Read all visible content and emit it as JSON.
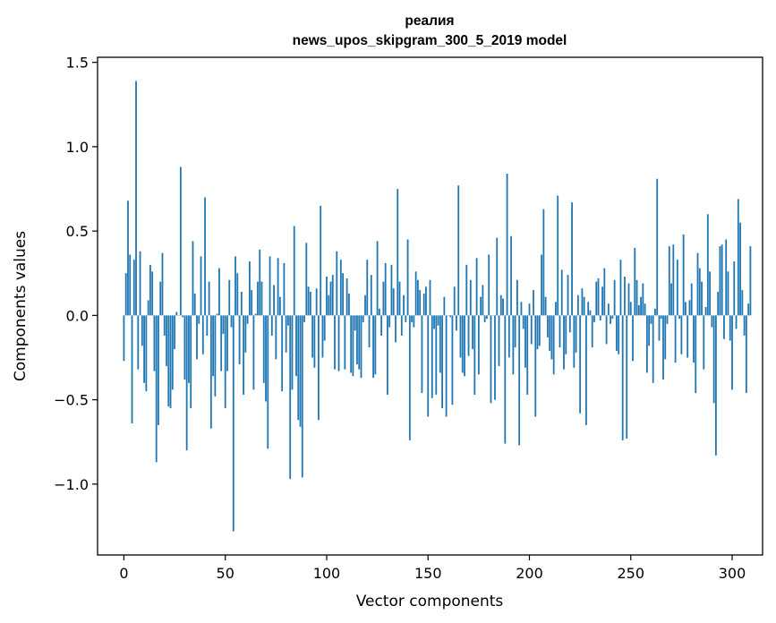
{
  "chart_data": {
    "type": "bar",
    "title": "реалия",
    "subtitle": "news_upos_skipgram_300_5_2019 model",
    "xlabel": "Vector components",
    "ylabel": "Components values",
    "xlim": [
      -13,
      315
    ],
    "ylim": [
      -1.42,
      1.53
    ],
    "xticks": [
      0,
      50,
      100,
      150,
      200,
      250,
      300
    ],
    "xtick_labels": [
      "0",
      "50",
      "100",
      "150",
      "200",
      "250",
      "300"
    ],
    "yticks": [
      -1.0,
      -0.5,
      0.0,
      0.5,
      1.0,
      1.5
    ],
    "ytick_labels": [
      "−1.0",
      "−0.5",
      "0.0",
      "0.5",
      "1.0",
      "1.5"
    ],
    "bar_color": "#1f77b4",
    "values": [
      -0.27,
      0.25,
      0.68,
      0.36,
      -0.64,
      0.33,
      1.39,
      -0.32,
      0.38,
      -0.18,
      -0.4,
      -0.45,
      0.09,
      0.3,
      0.26,
      -0.33,
      -0.87,
      -0.65,
      0.2,
      0.37,
      -0.12,
      -0.3,
      -0.54,
      -0.55,
      -0.44,
      -0.2,
      0.02,
      0.0,
      0.88,
      -0.01,
      -0.38,
      -0.8,
      -0.4,
      -0.55,
      0.44,
      0.13,
      -0.26,
      -0.05,
      0.35,
      -0.23,
      0.7,
      -0.12,
      0.2,
      -0.67,
      -0.36,
      -0.48,
      0.01,
      0.28,
      -0.33,
      -0.11,
      -0.55,
      -0.33,
      0.21,
      -0.07,
      -1.28,
      0.35,
      0.25,
      -0.29,
      0.14,
      -0.47,
      -0.22,
      -0.05,
      0.32,
      0.15,
      -0.44,
      0.01,
      0.2,
      0.39,
      0.2,
      -0.4,
      -0.51,
      -0.79,
      0.35,
      -0.12,
      0.18,
      -0.26,
      0.34,
      0.11,
      -0.45,
      0.31,
      -0.22,
      -0.06,
      -0.97,
      -0.44,
      0.53,
      -0.36,
      -0.62,
      -0.66,
      -0.96,
      -0.04,
      0.43,
      0.17,
      0.14,
      -0.25,
      -0.31,
      0.16,
      -0.62,
      0.65,
      -0.25,
      -0.15,
      0.23,
      0.12,
      0.2,
      0.24,
      -0.32,
      0.38,
      -0.33,
      0.33,
      0.25,
      -0.32,
      0.22,
      0.13,
      -0.34,
      -0.36,
      -0.09,
      -0.29,
      -0.32,
      -0.37,
      -0.04,
      0.12,
      0.33,
      -0.19,
      0.24,
      -0.37,
      -0.35,
      0.44,
      0.04,
      -0.12,
      0.2,
      0.31,
      -0.47,
      -0.07,
      0.3,
      0.16,
      -0.16,
      0.75,
      0.2,
      -0.12,
      0.12,
      -0.04,
      0.45,
      -0.74,
      -0.04,
      -0.07,
      0.26,
      0.21,
      0.15,
      -0.46,
      0.13,
      0.17,
      -0.6,
      0.21,
      -0.49,
      -0.08,
      -0.47,
      -0.06,
      -0.34,
      -0.55,
      0.11,
      -0.6,
      0.0,
      -0.01,
      -0.53,
      0.17,
      -0.09,
      0.77,
      -0.25,
      -0.34,
      -0.36,
      0.3,
      -0.24,
      0.21,
      -0.2,
      -0.47,
      0.34,
      -0.35,
      0.11,
      0.18,
      -0.04,
      -0.02,
      0.36,
      -0.52,
      0.0,
      -0.5,
      0.46,
      -0.3,
      0.12,
      0.1,
      -0.76,
      0.84,
      -0.25,
      0.47,
      -0.35,
      -0.19,
      0.21,
      -0.77,
      0.08,
      -0.08,
      -0.31,
      -0.47,
      0.07,
      -0.17,
      0.15,
      -0.6,
      -0.2,
      -0.18,
      0.36,
      0.63,
      0.11,
      -0.13,
      -0.21,
      -0.26,
      -0.35,
      0.08,
      0.71,
      -0.19,
      0.27,
      -0.32,
      -0.23,
      0.24,
      -0.1,
      0.67,
      -0.31,
      -0.22,
      0.12,
      -0.58,
      0.16,
      0.11,
      -0.65,
      0.08,
      0.03,
      -0.19,
      -0.04,
      0.2,
      0.22,
      -0.03,
      0.17,
      0.28,
      -0.17,
      0.07,
      -0.05,
      -0.02,
      0.21,
      -0.21,
      -0.23,
      0.33,
      -0.74,
      0.23,
      -0.73,
      0.19,
      0.08,
      -0.27,
      0.4,
      0.21,
      0.06,
      0.11,
      0.19,
      0.07,
      -0.34,
      -0.18,
      -0.05,
      -0.4,
      0.04,
      0.81,
      -0.15,
      -0.02,
      -0.38,
      -0.26,
      -0.05,
      0.41,
      0.19,
      0.42,
      -0.28,
      0.33,
      -0.02,
      -0.23,
      0.48,
      0.08,
      -0.25,
      0.09,
      0.19,
      -0.28,
      -0.46,
      0.37,
      0.28,
      0.2,
      -0.32,
      0.05,
      0.6,
      0.26,
      -0.07,
      -0.52,
      -0.83,
      0.14,
      0.41,
      0.42,
      -0.14,
      0.45,
      0.26,
      -0.15,
      -0.44,
      0.32,
      -0.08,
      0.69,
      0.55,
      0.15,
      -0.12,
      -0.46,
      0.07,
      0.41
    ]
  }
}
